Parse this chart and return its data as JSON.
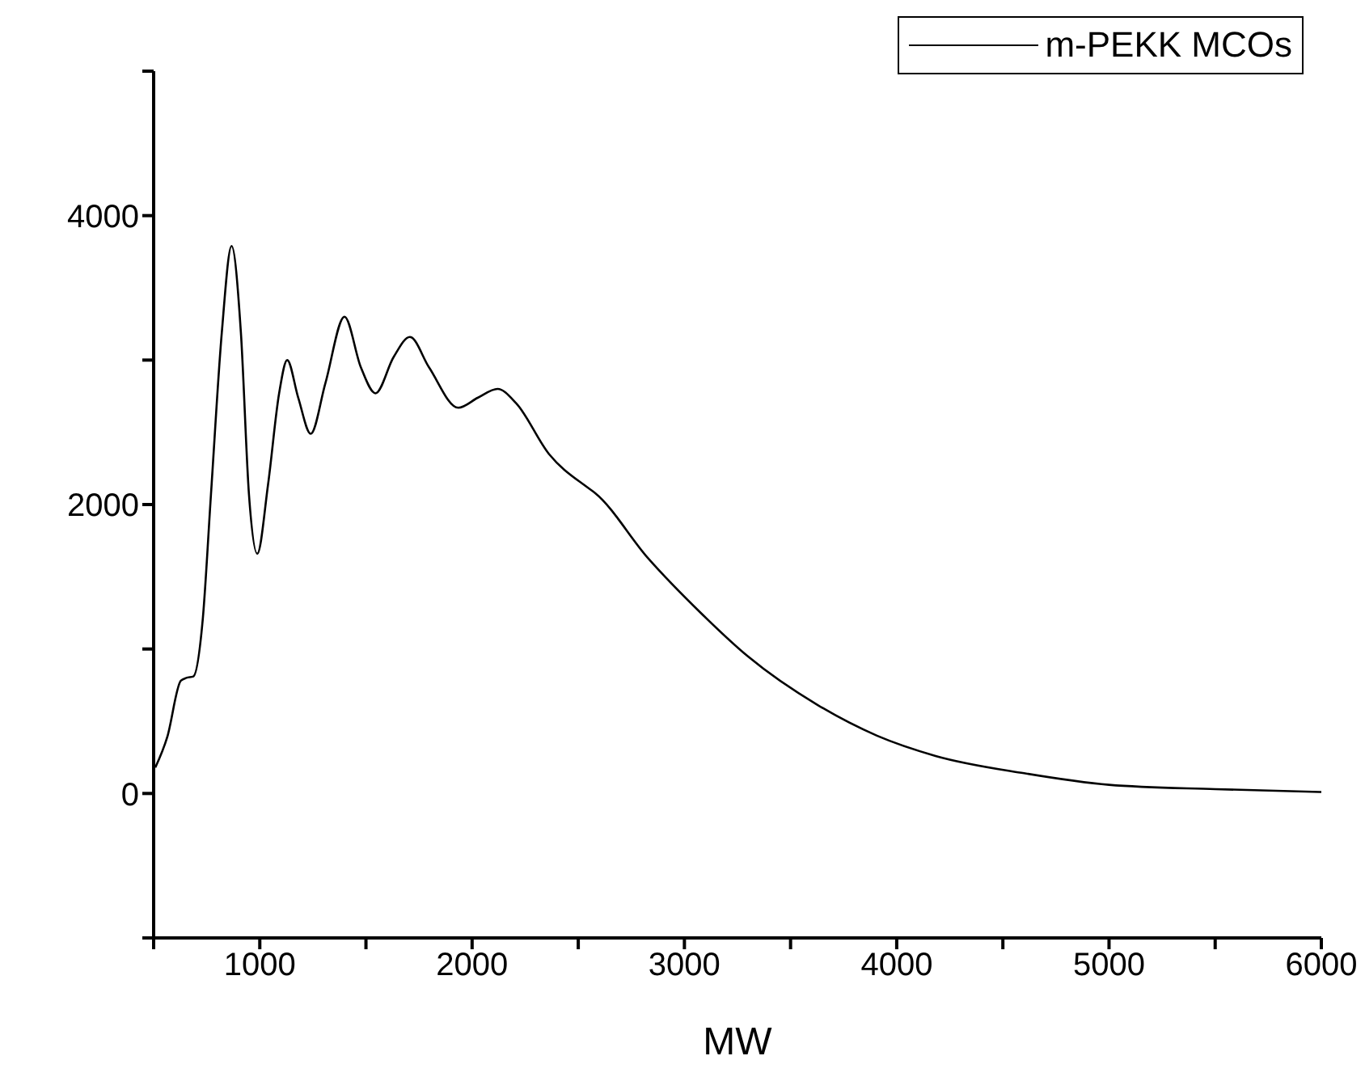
{
  "chart_data": {
    "type": "line",
    "xlabel": "MW",
    "xlim": [
      500,
      6000
    ],
    "xticks": [
      {
        "value": 500,
        "label": null
      },
      1000,
      {
        "value": 1500,
        "label": null
      },
      2000,
      {
        "value": 2500,
        "label": null
      },
      3000,
      {
        "value": 3500,
        "label": null
      },
      4000,
      {
        "value": 4500,
        "label": null
      },
      5000,
      {
        "value": 5500,
        "label": null
      },
      6000
    ],
    "ylim": [
      -1000,
      5000
    ],
    "yticks": [
      {
        "value": -1000,
        "label": null
      },
      0,
      {
        "value": 1000,
        "label": null
      },
      2000,
      {
        "value": 3000,
        "label": null
      },
      4000,
      {
        "value": 5000,
        "label": null
      }
    ],
    "grid": false,
    "legend": "top right",
    "marker": "none",
    "line_style": "solid",
    "series": [
      {
        "name": "m-PEKK MCOs",
        "color": "#000000",
        "x": [
          508,
          564,
          628,
          654,
          687,
          731,
          770,
          821,
          867,
          911,
          949,
          988,
          1039,
          1091,
          1129,
          1181,
          1240,
          1309,
          1399,
          1476,
          1545,
          1630,
          1707,
          1797,
          1935,
          2028,
          2120,
          2208,
          2362,
          2542,
          2579,
          2828,
          3077,
          3298,
          3630,
          3907,
          4183,
          4600,
          5000,
          5500,
          6000
        ],
        "values": [
          180,
          390,
          780,
          800,
          810,
          1200,
          2070,
          3190,
          3790,
          3190,
          2070,
          1660,
          2140,
          2770,
          3000,
          2740,
          2490,
          2840,
          3300,
          2950,
          2770,
          3020,
          3160,
          2950,
          2670,
          2740,
          2800,
          2700,
          2350,
          2120,
          2080,
          1630,
          1250,
          950,
          610,
          400,
          260,
          140,
          60,
          30,
          10
        ]
      }
    ]
  }
}
